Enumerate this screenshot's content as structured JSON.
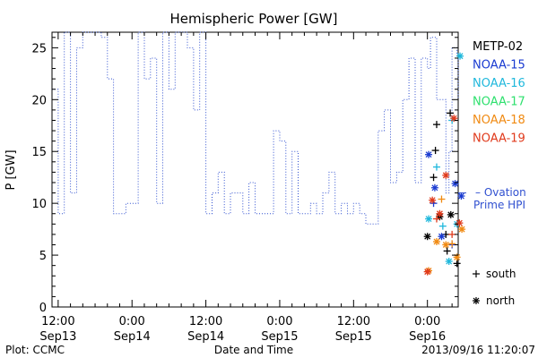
{
  "chart_data": {
    "type": "scatter",
    "title": "Hemispheric Power [GW]",
    "ylabel": "P [GW]",
    "xlabel": "Date and Time",
    "x_unit": "hours since 2013-09-13 00:00",
    "xlim": [
      11,
      77
    ],
    "ylim": [
      0,
      26.5
    ],
    "y_ticks": [
      0,
      5,
      10,
      15,
      20,
      25
    ],
    "x_ticks": [
      {
        "x": 12,
        "line1": "12:00",
        "line2": "Sep13"
      },
      {
        "x": 24,
        "line1": "0:00",
        "line2": "Sep14"
      },
      {
        "x": 36,
        "line1": "12:00",
        "line2": "Sep14"
      },
      {
        "x": 48,
        "line1": "0:00",
        "line2": "Sep15"
      },
      {
        "x": 60,
        "line1": "12:00",
        "line2": "Sep15"
      },
      {
        "x": 72,
        "line1": "0:00",
        "line2": "Sep16"
      }
    ],
    "grid": false,
    "ovation_color": "#3050d0",
    "ovation_label_line1": "– Ovation",
    "ovation_label_line2": "Prime HPI",
    "ovation_marker_value": 11,
    "ovation_series": [
      [
        11,
        21
      ],
      [
        12,
        21
      ],
      [
        12,
        9
      ],
      [
        13,
        9
      ],
      [
        13,
        26.5
      ],
      [
        14,
        26.5
      ],
      [
        14,
        11
      ],
      [
        15,
        11
      ],
      [
        15,
        25
      ],
      [
        16,
        25
      ],
      [
        16,
        26.5
      ],
      [
        17,
        26.5
      ],
      [
        19,
        26.5
      ],
      [
        19,
        26
      ],
      [
        20,
        26
      ],
      [
        20,
        22
      ],
      [
        21,
        22
      ],
      [
        21,
        9
      ],
      [
        23,
        9
      ],
      [
        23,
        10
      ],
      [
        25,
        10
      ],
      [
        25,
        26.5
      ],
      [
        26,
        26.5
      ],
      [
        26,
        22
      ],
      [
        27,
        22
      ],
      [
        27,
        24
      ],
      [
        28,
        24
      ],
      [
        28,
        10
      ],
      [
        29,
        10
      ],
      [
        29,
        26.5
      ],
      [
        30,
        26.5
      ],
      [
        30,
        21
      ],
      [
        31,
        21
      ],
      [
        31,
        26.5
      ],
      [
        33,
        26.5
      ],
      [
        33,
        25
      ],
      [
        34,
        25
      ],
      [
        34,
        19
      ],
      [
        35,
        19
      ],
      [
        35,
        26.5
      ],
      [
        36,
        26.5
      ],
      [
        36,
        9
      ],
      [
        37,
        9
      ],
      [
        37,
        11
      ],
      [
        38,
        11
      ],
      [
        38,
        13
      ],
      [
        39,
        13
      ],
      [
        39,
        9
      ],
      [
        40,
        9
      ],
      [
        40,
        11
      ],
      [
        42,
        11
      ],
      [
        42,
        9
      ],
      [
        43,
        9
      ],
      [
        43,
        12
      ],
      [
        44,
        12
      ],
      [
        44,
        9
      ],
      [
        47,
        9
      ],
      [
        47,
        17
      ],
      [
        48,
        17
      ],
      [
        48,
        16
      ],
      [
        49,
        16
      ],
      [
        49,
        9
      ],
      [
        50,
        9
      ],
      [
        50,
        15
      ],
      [
        51,
        15
      ],
      [
        51,
        9
      ],
      [
        53,
        9
      ],
      [
        53,
        10
      ],
      [
        54,
        10
      ],
      [
        54,
        9
      ],
      [
        55,
        9
      ],
      [
        55,
        11
      ],
      [
        56,
        11
      ],
      [
        56,
        13
      ],
      [
        57,
        13
      ],
      [
        57,
        9
      ],
      [
        58,
        9
      ],
      [
        58,
        10
      ],
      [
        59,
        10
      ],
      [
        59,
        9
      ],
      [
        60,
        9
      ],
      [
        60,
        10
      ],
      [
        61,
        10
      ],
      [
        61,
        9
      ],
      [
        62,
        9
      ],
      [
        62,
        8
      ],
      [
        64,
        8
      ],
      [
        64,
        17
      ],
      [
        65,
        17
      ],
      [
        65,
        19
      ],
      [
        66,
        19
      ],
      [
        66,
        12
      ],
      [
        67,
        12
      ],
      [
        67,
        13
      ],
      [
        68,
        13
      ],
      [
        68,
        20
      ],
      [
        69,
        20
      ],
      [
        69,
        24
      ],
      [
        70,
        24
      ],
      [
        70,
        12
      ],
      [
        71,
        12
      ],
      [
        71,
        24
      ],
      [
        72,
        24
      ],
      [
        72,
        23
      ],
      [
        72.5,
        23
      ],
      [
        72.5,
        26
      ],
      [
        73.5,
        26
      ],
      [
        73.5,
        20
      ],
      [
        75,
        20
      ],
      [
        75,
        11
      ],
      [
        75.5,
        11
      ],
      [
        75.5,
        15
      ],
      [
        76,
        15
      ],
      [
        76,
        25
      ],
      [
        76.8,
        25
      ],
      [
        76.8,
        24
      ],
      [
        77.3,
        24
      ],
      [
        77.3,
        20
      ],
      [
        78,
        20
      ]
    ],
    "legend": [
      {
        "name": "METP-02",
        "color": "#000000"
      },
      {
        "name": "NOAA-15",
        "color": "#1a3bd1"
      },
      {
        "name": "NOAA-16",
        "color": "#1fb8dc"
      },
      {
        "name": "NOAA-17",
        "color": "#2ee06e"
      },
      {
        "name": "NOAA-18",
        "color": "#f08a12"
      },
      {
        "name": "NOAA-19",
        "color": "#e03a1c"
      }
    ],
    "symbol_legend": [
      {
        "symbol": "+",
        "label": "south"
      },
      {
        "symbol": "*",
        "label": "north"
      }
    ],
    "satellite_points": [
      {
        "sat": "METP-02",
        "marker": "plus",
        "x": 73.3,
        "y": 15.1
      },
      {
        "sat": "METP-02",
        "marker": "plus",
        "x": 73.5,
        "y": 17.6
      },
      {
        "sat": "METP-02",
        "marker": "plus",
        "x": 73.0,
        "y": 12.5
      },
      {
        "sat": "METP-02",
        "marker": "plus",
        "x": 75.7,
        "y": 18.7
      },
      {
        "sat": "METP-02",
        "marker": "plus",
        "x": 75.0,
        "y": 7.0
      },
      {
        "sat": "METP-02",
        "marker": "plus",
        "x": 75.2,
        "y": 5.4
      },
      {
        "sat": "METP-02",
        "marker": "plus",
        "x": 76.8,
        "y": 4.2
      },
      {
        "sat": "METP-02",
        "marker": "star",
        "x": 72.0,
        "y": 6.8
      },
      {
        "sat": "METP-02",
        "marker": "star",
        "x": 74.0,
        "y": 8.7
      },
      {
        "sat": "METP-02",
        "marker": "star",
        "x": 75.8,
        "y": 8.9
      },
      {
        "sat": "NOAA-15",
        "marker": "star",
        "x": 72.2,
        "y": 14.7
      },
      {
        "sat": "NOAA-15",
        "marker": "star",
        "x": 73.2,
        "y": 11.5
      },
      {
        "sat": "NOAA-15",
        "marker": "star",
        "x": 74.3,
        "y": 6.8
      },
      {
        "sat": "NOAA-15",
        "marker": "star",
        "x": 76.5,
        "y": 11.9
      },
      {
        "sat": "NOAA-15",
        "marker": "star",
        "x": 77.5,
        "y": 10.7
      },
      {
        "sat": "NOAA-15",
        "marker": "plus",
        "x": 73.0,
        "y": 10.0
      },
      {
        "sat": "NOAA-15",
        "marker": "plus",
        "x": 76.0,
        "y": 6.0
      },
      {
        "sat": "NOAA-16",
        "marker": "star",
        "x": 77.3,
        "y": 24.2
      },
      {
        "sat": "NOAA-16",
        "marker": "star",
        "x": 72.2,
        "y": 8.5
      },
      {
        "sat": "NOAA-16",
        "marker": "star",
        "x": 75.5,
        "y": 4.4
      },
      {
        "sat": "NOAA-16",
        "marker": "star",
        "x": 76.8,
        "y": 8.0
      },
      {
        "sat": "NOAA-16",
        "marker": "plus",
        "x": 73.5,
        "y": 13.5
      },
      {
        "sat": "NOAA-16",
        "marker": "plus",
        "x": 74.5,
        "y": 7.8
      },
      {
        "sat": "NOAA-16",
        "marker": "plus",
        "x": 76.0,
        "y": 18.0
      },
      {
        "sat": "NOAA-18",
        "marker": "star",
        "x": 72.2,
        "y": 3.5
      },
      {
        "sat": "NOAA-18",
        "marker": "star",
        "x": 73.5,
        "y": 6.3
      },
      {
        "sat": "NOAA-18",
        "marker": "star",
        "x": 75.0,
        "y": 6.0
      },
      {
        "sat": "NOAA-18",
        "marker": "star",
        "x": 76.8,
        "y": 4.8
      },
      {
        "sat": "NOAA-18",
        "marker": "star",
        "x": 77.6,
        "y": 7.5
      },
      {
        "sat": "NOAA-18",
        "marker": "plus",
        "x": 74.3,
        "y": 10.4
      },
      {
        "sat": "NOAA-18",
        "marker": "plus",
        "x": 76.0,
        "y": 6.1
      },
      {
        "sat": "NOAA-19",
        "marker": "star",
        "x": 76.3,
        "y": 18.2
      },
      {
        "sat": "NOAA-19",
        "marker": "star",
        "x": 75.0,
        "y": 12.7
      },
      {
        "sat": "NOAA-19",
        "marker": "star",
        "x": 72.8,
        "y": 10.3
      },
      {
        "sat": "NOAA-19",
        "marker": "star",
        "x": 72.0,
        "y": 3.4
      },
      {
        "sat": "NOAA-19",
        "marker": "star",
        "x": 74.0,
        "y": 9.0
      },
      {
        "sat": "NOAA-19",
        "marker": "star",
        "x": 77.2,
        "y": 8.1
      },
      {
        "sat": "NOAA-19",
        "marker": "plus",
        "x": 73.5,
        "y": 8.5
      },
      {
        "sat": "NOAA-19",
        "marker": "plus",
        "x": 76.0,
        "y": 7.0
      }
    ],
    "footer_left": "Plot: CCMC",
    "footer_right": "2013/09/16 11:20:07"
  }
}
